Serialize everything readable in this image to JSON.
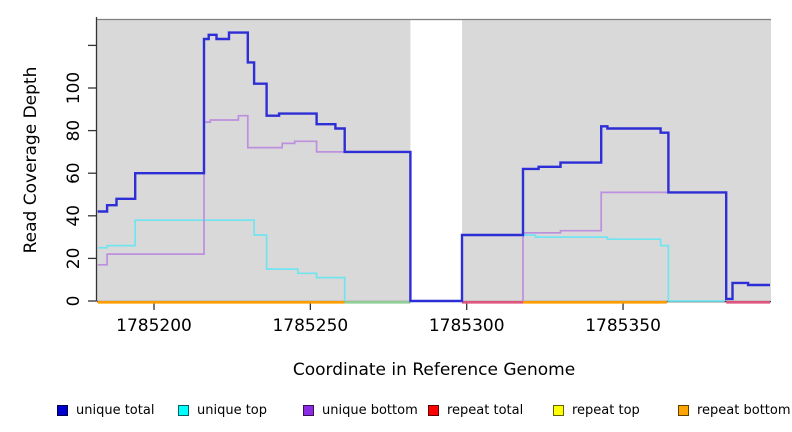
{
  "chart_data": {
    "type": "line",
    "style": "step",
    "title": "",
    "xlabel": "Coordinate in Reference Genome",
    "ylabel": "Read Coverage Depth",
    "xlim": [
      1785182,
      1785397
    ],
    "ylim": [
      0,
      132
    ],
    "x_ticks": [
      1785200,
      1785250,
      1785300,
      1785350
    ],
    "y_ticks": [
      0,
      20,
      40,
      60,
      80,
      100
    ],
    "y_ticks_unlabeled": [
      120
    ],
    "grid": false,
    "legend_position": "bottom",
    "panel_background": "#D9D9D9",
    "panel_top_border": "#808080",
    "axis_color": "#333333",
    "gap_region": {
      "x_start": 1785282,
      "x_end": 1785298.5,
      "color": "#FFFFFF"
    },
    "series": [
      {
        "name": "unique top",
        "line_color": "#72E4EF",
        "steps": [
          [
            1785182,
            1785185,
            25
          ],
          [
            1785185,
            1785194,
            26
          ],
          [
            1785194,
            1785232,
            38
          ],
          [
            1785232,
            1785236,
            31
          ],
          [
            1785236,
            1785246,
            15
          ],
          [
            1785246,
            1785252,
            13
          ],
          [
            1785252,
            1785261,
            11
          ],
          [
            1785261,
            1785261,
            0
          ],
          [
            1785298.5,
            1785298.5,
            0
          ],
          [
            1785298.5,
            1785322,
            31
          ],
          [
            1785322,
            1785345,
            30
          ],
          [
            1785345,
            1785362,
            29
          ],
          [
            1785362,
            1785364.5,
            26
          ],
          [
            1785364.5,
            1785382.5,
            0
          ]
        ]
      },
      {
        "name": "unique bottom",
        "line_color": "#BD8FDF",
        "steps": [
          [
            1785182,
            1785185,
            17
          ],
          [
            1785185,
            1785216,
            22
          ],
          [
            1785216,
            1785218,
            84
          ],
          [
            1785218,
            1785227,
            85
          ],
          [
            1785227,
            1785230,
            87
          ],
          [
            1785230,
            1785241,
            72
          ],
          [
            1785241,
            1785245,
            74
          ],
          [
            1785245,
            1785252,
            75
          ],
          [
            1785252,
            1785261,
            70
          ],
          [
            1785261,
            1785282,
            70
          ],
          [
            1785282,
            1785282,
            0
          ],
          [
            1785318,
            1785318,
            0
          ],
          [
            1785318,
            1785330,
            32
          ],
          [
            1785330,
            1785343,
            33
          ],
          [
            1785343,
            1785383,
            51
          ],
          [
            1785383,
            1785383,
            0
          ]
        ]
      },
      {
        "name": "unique total",
        "line_color": "#2E2ED6",
        "steps": [
          [
            1785182,
            1785185,
            42
          ],
          [
            1785185,
            1785188,
            45
          ],
          [
            1785188,
            1785194,
            48
          ],
          [
            1785194,
            1785216,
            60
          ],
          [
            1785216,
            1785217.5,
            123
          ],
          [
            1785217.5,
            1785220,
            125
          ],
          [
            1785220,
            1785224,
            123
          ],
          [
            1785224,
            1785230,
            126
          ],
          [
            1785230,
            1785232,
            112
          ],
          [
            1785232,
            1785236,
            102
          ],
          [
            1785236,
            1785240,
            87
          ],
          [
            1785240,
            1785252,
            88
          ],
          [
            1785252,
            1785258,
            83
          ],
          [
            1785258,
            1785261,
            81
          ],
          [
            1785261,
            1785282,
            70
          ],
          [
            1785282,
            1785298.5,
            0
          ],
          [
            1785298.5,
            1785318,
            31
          ],
          [
            1785318,
            1785323,
            62
          ],
          [
            1785323,
            1785330,
            63
          ],
          [
            1785330,
            1785343,
            65
          ],
          [
            1785343,
            1785345,
            82
          ],
          [
            1785345,
            1785362,
            81
          ],
          [
            1785362,
            1785364.5,
            79
          ],
          [
            1785364.5,
            1785383,
            51
          ],
          [
            1785383,
            1785385,
            1
          ],
          [
            1785385,
            1785390,
            8.5
          ],
          [
            1785390,
            1785397,
            7.5
          ]
        ]
      }
    ],
    "baseline_segments": [
      {
        "x_start": 1785182,
        "x_end": 1785261,
        "color": "#FF9D00",
        "note": "repeat bottom at 0"
      },
      {
        "x_start": 1785261,
        "x_end": 1785282,
        "color": "#8FCE96",
        "note": "unique top at 0 over orange"
      },
      {
        "x_start": 1785298.5,
        "x_end": 1785318,
        "color": "#E0557F",
        "note": "unique bottom at 0 over orange"
      },
      {
        "x_start": 1785318,
        "x_end": 1785364,
        "color": "#FF9D00",
        "note": "repeat bottom at 0"
      },
      {
        "x_start": 1785383,
        "x_end": 1785397,
        "color": "#E0557F",
        "note": "unique bottom at 0 over orange"
      }
    ],
    "legend": [
      {
        "label": "unique total",
        "color": "#0000CD"
      },
      {
        "label": "unique top",
        "color": "#00FFFF"
      },
      {
        "label": "unique bottom",
        "color": "#8B2BE2"
      },
      {
        "label": "repeat total",
        "color": "#FF0000"
      },
      {
        "label": "repeat top",
        "color": "#FFFF00"
      },
      {
        "label": "repeat bottom",
        "color": "#FFA500"
      }
    ]
  }
}
